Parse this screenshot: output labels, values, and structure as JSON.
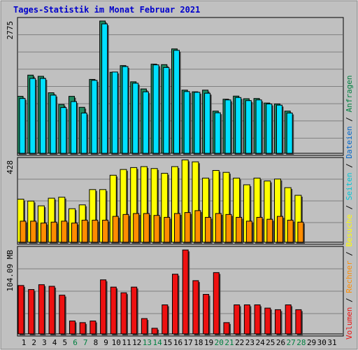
{
  "title": "Tages-Statistik im Monat Februar 2021",
  "legend": {
    "anfragen": "Anfragen",
    "dateien": "Dateien",
    "seiten": "Seiten",
    "besuche": "Besuche",
    "rechner": "Rechner",
    "volumen": "Volumen",
    "sep": " / "
  },
  "colors": {
    "anfragen": "#008040",
    "anfragen_bar": "#208860",
    "dateien": "#00e0ff",
    "seiten": "#00c8d8",
    "besuche": "#ffff00",
    "rechner": "#ff8c00",
    "volumen": "#ee1111",
    "weekend_label": "#008040",
    "plot_bg": "#c0c0c0",
    "grid": "#808080"
  },
  "chart_data": [
    {
      "type": "bar",
      "panel": "hits",
      "ylabel": "2775",
      "ymax": 2775,
      "x": [
        "1",
        "2",
        "3",
        "4",
        "5",
        "6",
        "7",
        "8",
        "9",
        "10",
        "11",
        "12",
        "13",
        "14",
        "15",
        "16",
        "17",
        "18",
        "19",
        "20",
        "21",
        "22",
        "23",
        "24",
        "25",
        "26",
        "27",
        "28",
        "29",
        "30",
        "31"
      ],
      "series": [
        {
          "name": "Anfragen",
          "values": [
            1195,
            1640,
            1615,
            1270,
            1025,
            1195,
            965,
            1550,
            2775,
            1700,
            1840,
            1500,
            1350,
            1870,
            1860,
            2190,
            1325,
            1290,
            1325,
            885,
            1135,
            1200,
            1145,
            1150,
            1055,
            1035,
            885,
            0,
            0,
            0,
            0
          ]
        },
        {
          "name": "Dateien",
          "values": [
            1150,
            1570,
            1570,
            1220,
            960,
            1085,
            845,
            1530,
            2715,
            1705,
            1820,
            1470,
            1290,
            1855,
            1800,
            2160,
            1295,
            1280,
            1260,
            850,
            1120,
            1170,
            1105,
            1120,
            1035,
            1010,
            845,
            0,
            0,
            0,
            0
          ]
        }
      ]
    },
    {
      "type": "bar",
      "panel": "visits",
      "ylabel": "428",
      "ymax": 428,
      "x": [
        "1",
        "2",
        "3",
        "4",
        "5",
        "6",
        "7",
        "8",
        "9",
        "10",
        "11",
        "12",
        "13",
        "14",
        "15",
        "16",
        "17",
        "18",
        "19",
        "20",
        "21",
        "22",
        "23",
        "24",
        "25",
        "26",
        "27",
        "28",
        "29",
        "30",
        "31"
      ],
      "series": [
        {
          "name": "Seiten",
          "values": [
            225,
            215,
            190,
            230,
            235,
            175,
            195,
            275,
            275,
            350,
            380,
            390,
            395,
            385,
            360,
            395,
            430,
            420,
            335,
            375,
            365,
            335,
            300,
            335,
            320,
            330,
            285,
            245,
            0,
            0,
            0
          ]
        },
        {
          "name": "Besuche",
          "values": [
            110,
            110,
            100,
            105,
            110,
            100,
            115,
            115,
            115,
            135,
            145,
            150,
            150,
            140,
            130,
            150,
            155,
            165,
            130,
            150,
            145,
            130,
            110,
            130,
            120,
            135,
            115,
            105,
            0,
            0,
            0
          ]
        }
      ]
    },
    {
      "type": "bar",
      "panel": "volume",
      "ylabel": "104.09 MB",
      "ymax": 104.09,
      "x": [
        "1",
        "2",
        "3",
        "4",
        "5",
        "6",
        "7",
        "8",
        "9",
        "10",
        "11",
        "12",
        "13",
        "14",
        "15",
        "16",
        "17",
        "18",
        "19",
        "20",
        "21",
        "22",
        "23",
        "24",
        "25",
        "26",
        "27",
        "28",
        "29",
        "30",
        "31"
      ],
      "series": [
        {
          "name": "Volumen",
          "values": [
            60,
            55,
            61,
            59,
            48,
            16,
            14,
            16,
            67,
            58,
            51,
            58,
            19,
            7,
            36,
            74,
            104,
            66,
            49,
            76,
            14,
            36,
            36,
            36,
            32,
            30,
            36,
            30,
            0,
            0,
            0
          ]
        }
      ]
    }
  ],
  "weekend_days": [
    6,
    7,
    13,
    14,
    20,
    21,
    27,
    28
  ]
}
